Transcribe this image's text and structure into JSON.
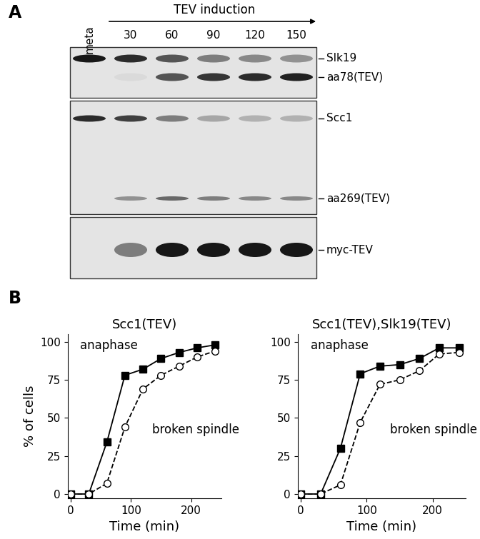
{
  "panel_labels": [
    "A",
    "B"
  ],
  "blot": {
    "header": "TEV induction",
    "lanes": [
      "meta",
      30,
      60,
      90,
      120,
      150
    ],
    "panels": [
      {
        "bands": [
          {
            "label": "Slk19",
            "intensity": [
              1.0,
              0.9,
              0.7,
              0.5,
              0.45,
              0.4
            ]
          },
          {
            "label": "aa78(TEV)",
            "intensity": [
              0.0,
              0.05,
              0.7,
              0.85,
              0.9,
              0.95
            ]
          }
        ]
      },
      {
        "bands": [
          {
            "label": "Scc1",
            "intensity": [
              0.9,
              0.8,
              0.5,
              0.3,
              0.25,
              0.25
            ]
          },
          {
            "label": "aa269(TEV)",
            "intensity": [
              0.0,
              0.4,
              0.6,
              0.5,
              0.45,
              0.45
            ]
          }
        ]
      },
      {
        "bands": [
          {
            "label": "myc-TEV",
            "intensity": [
              0.0,
              0.5,
              1.0,
              1.0,
              1.0,
              1.0
            ]
          }
        ]
      }
    ]
  },
  "chart_data": [
    {
      "type": "line",
      "title": "Scc1(TEV)",
      "x_label": "Time (min)",
      "y_label": "% of cells",
      "x": [
        0,
        30,
        60,
        90,
        120,
        150,
        180,
        210,
        240
      ],
      "xlim": [
        -5,
        250
      ],
      "xticks": [
        0,
        100,
        200
      ],
      "ylim": [
        -3,
        105
      ],
      "yticks": [
        0,
        25,
        50,
        75,
        100
      ],
      "series": [
        {
          "name": "anaphase",
          "color": "#000000",
          "marker": "square",
          "line_style": "solid",
          "values": [
            0,
            0,
            34,
            78,
            82,
            89,
            93,
            96,
            98
          ]
        },
        {
          "name": "broken spindle",
          "color": "#000000",
          "marker": "open circle",
          "line_style": "dashed",
          "values": [
            0,
            0,
            7,
            44,
            69,
            78,
            84,
            90,
            94
          ]
        }
      ]
    },
    {
      "type": "line",
      "title": "Scc1(TEV),Slk19(TEV)",
      "x_label": "Time (min)",
      "x": [
        0,
        30,
        60,
        90,
        120,
        150,
        180,
        210,
        240
      ],
      "xlim": [
        -5,
        250
      ],
      "xticks": [
        0,
        100,
        200
      ],
      "ylim": [
        -3,
        105
      ],
      "yticks": [
        0,
        25,
        50,
        75,
        100
      ],
      "series": [
        {
          "name": "anaphase",
          "color": "#000000",
          "marker": "square",
          "line_style": "solid",
          "values": [
            0,
            0,
            30,
            79,
            84,
            85,
            89,
            96,
            96
          ]
        },
        {
          "name": "broken spindle",
          "color": "#000000",
          "marker": "open circle",
          "line_style": "dashed",
          "values": [
            0,
            0,
            6,
            47,
            72,
            75,
            81,
            92,
            93
          ]
        }
      ]
    }
  ]
}
